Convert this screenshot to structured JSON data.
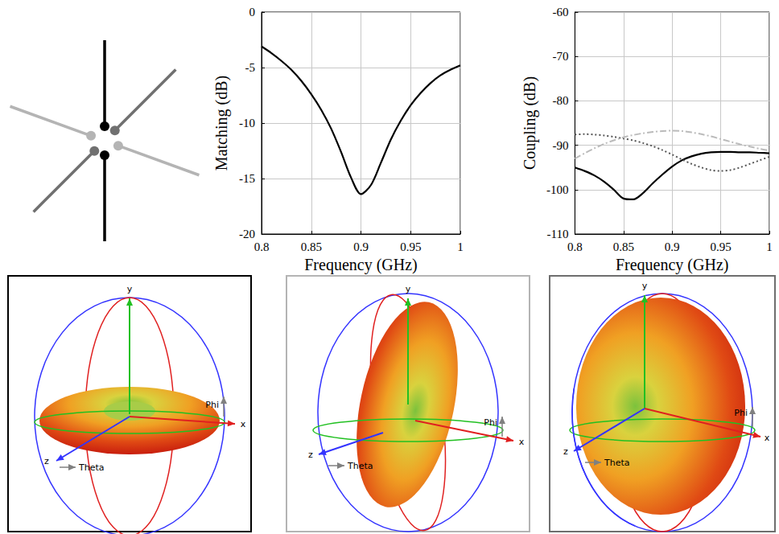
{
  "chart_data": [
    {
      "type": "line",
      "x_label": "Frequency (GHz)",
      "y_label": "Matching (dB)",
      "x": [
        0.8,
        0.81,
        0.82,
        0.83,
        0.84,
        0.85,
        0.86,
        0.87,
        0.88,
        0.89,
        0.9,
        0.91,
        0.92,
        0.93,
        0.94,
        0.95,
        0.96,
        0.97,
        0.98,
        0.99,
        1.0
      ],
      "series": [
        {
          "color": "#000000",
          "line_style": "solid",
          "values": [
            -3.1,
            -3.7,
            -4.4,
            -5.2,
            -6.2,
            -7.4,
            -8.8,
            -10.5,
            -12.6,
            -14.9,
            -16.4,
            -15.6,
            -13.6,
            -11.5,
            -9.8,
            -8.4,
            -7.3,
            -6.4,
            -5.7,
            -5.2,
            -4.8
          ]
        }
      ],
      "xlim": [
        0.8,
        1
      ],
      "xticks": [
        0.8,
        0.85,
        0.9,
        0.95,
        1
      ],
      "ylim": [
        -20,
        0
      ],
      "yticks": [
        -20,
        -15,
        -10,
        -5,
        0
      ],
      "grid": true
    },
    {
      "type": "line",
      "x_label": "Frequency (GHz)",
      "y_label": "Coupling (dB)",
      "x": [
        0.8,
        0.81,
        0.82,
        0.83,
        0.84,
        0.85,
        0.86,
        0.87,
        0.88,
        0.89,
        0.9,
        0.91,
        0.92,
        0.93,
        0.94,
        0.95,
        0.96,
        0.97,
        0.98,
        0.99,
        1.0
      ],
      "series": [
        {
          "color": "#000000",
          "line_style": "solid",
          "values": [
            -95,
            -95.8,
            -96.8,
            -98.2,
            -100,
            -102,
            -102.2,
            -100.8,
            -98.6,
            -96.6,
            -94.8,
            -93.4,
            -92.5,
            -91.9,
            -91.6,
            -91.5,
            -91.5,
            -91.6,
            -91.6,
            -91.7,
            -91.8
          ]
        },
        {
          "color": "#555555",
          "line_style": "dotted",
          "values": [
            -87.6,
            -87.5,
            -87.6,
            -87.8,
            -88.1,
            -88.5,
            -88.9,
            -89.5,
            -90.2,
            -91.1,
            -92.1,
            -93.2,
            -94.2,
            -95.0,
            -95.6,
            -95.8,
            -95.6,
            -95.0,
            -94.2,
            -93.4,
            -92.6
          ]
        },
        {
          "color": "#bbbbbb",
          "line_style": "dashdot",
          "values": [
            -93,
            -91.8,
            -90.7,
            -89.7,
            -88.9,
            -88.2,
            -87.7,
            -87.3,
            -87.0,
            -86.8,
            -86.7,
            -86.8,
            -87.1,
            -87.5,
            -88.0,
            -88.6,
            -89.2,
            -89.8,
            -90.3,
            -90.8,
            -91.2
          ]
        }
      ],
      "xlim": [
        0.8,
        1
      ],
      "xticks": [
        0.8,
        0.85,
        0.9,
        0.95,
        1
      ],
      "ylim": [
        -110,
        -60
      ],
      "yticks": [
        -110,
        -100,
        -90,
        -80,
        -70,
        -60
      ],
      "grid": true
    }
  ],
  "antenna": {
    "dipoles": [
      {
        "color": "#000000"
      },
      {
        "color": "#b4b4b4"
      },
      {
        "color": "#707070"
      }
    ]
  },
  "radiation_patterns": [
    {
      "frame_color": "#000000",
      "labels": {
        "x": "x",
        "y": "y",
        "z": "z",
        "theta": "Theta",
        "phi": "Phi"
      }
    },
    {
      "frame_color": "#b4b4b4",
      "labels": {
        "x": "x",
        "y": "y",
        "z": "z",
        "theta": "Theta",
        "phi": "Phi"
      }
    },
    {
      "frame_color": "#6e6e6e",
      "labels": {
        "x": "x",
        "y": "y",
        "z": "z",
        "theta": "Theta",
        "phi": "Phi"
      }
    }
  ]
}
